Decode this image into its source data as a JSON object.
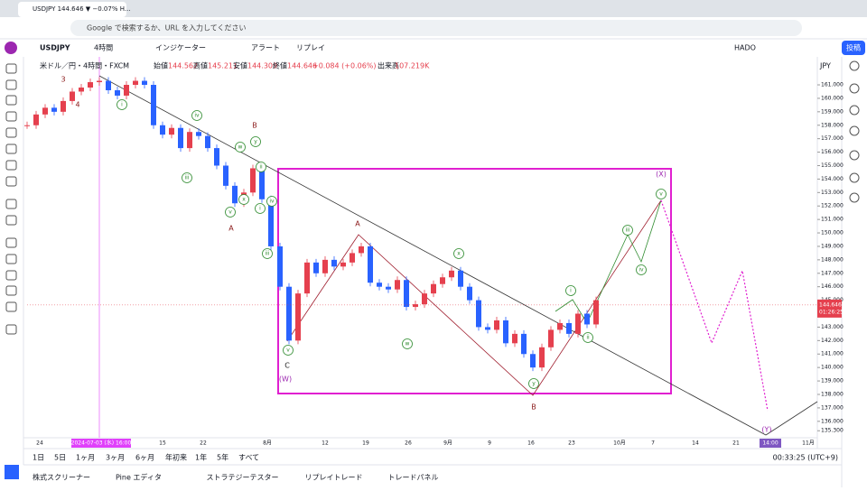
{
  "browser": {
    "tab_title": "USDJPY 144.646 ▼ −0.07% H...",
    "address": "Google で検索するか、URL を入力してください"
  },
  "toolbar": {
    "symbol": "USDJPY",
    "interval": "4時間",
    "indicators": "インジケーター",
    "alert": "アラート",
    "replay": "リプレイ",
    "layout": "HADO",
    "publish": "投稿"
  },
  "chart_data": {
    "type": "candlestick",
    "title": "米ドル／円・4時間・FXCM",
    "ohlc": [
      {
        "label": "始値",
        "value": 144.562
      },
      {
        "label": "高値",
        "value": 145.211
      },
      {
        "label": "安値",
        "value": 144.309
      },
      {
        "label": "終値",
        "value": 144.646
      }
    ],
    "change": "+0.084 (+0.06%)",
    "volume_label": "出来高",
    "volume": "107.219K",
    "closes": [
      158.0,
      158.8,
      159.3,
      159.0,
      159.8,
      160.5,
      160.8,
      161.2,
      161.3,
      160.6,
      160.2,
      161.0,
      161.3,
      161.0,
      158.0,
      157.3,
      157.8,
      156.3,
      157.5,
      157.2,
      156.3,
      155.0,
      153.5,
      152.2,
      153.0,
      154.8,
      152.5,
      149.0,
      146.0,
      142.0,
      145.5,
      147.8,
      147.0,
      148.0,
      147.5,
      147.8,
      148.5,
      149.0,
      146.3,
      146.0,
      145.8,
      146.5,
      144.5,
      144.7,
      145.5,
      146.2,
      146.7,
      147.2,
      146.0,
      145.0,
      143.0,
      142.8,
      143.5,
      141.8,
      142.5,
      141.0,
      140.0,
      141.5,
      142.8,
      143.3,
      142.5,
      144.0,
      143.2,
      145.0
    ],
    "up_color": "#e5404e",
    "down_color": "#2962ff",
    "ylim": [
      134.78,
      163.08
    ],
    "yticks": [
      {
        "value": 161,
        "label": "161.000"
      },
      {
        "value": 160,
        "label": "160.000"
      },
      {
        "value": 159,
        "label": "159.000"
      },
      {
        "value": 158,
        "label": "158.000"
      },
      {
        "value": 157,
        "label": "157.000"
      },
      {
        "value": 156,
        "label": "156.000"
      },
      {
        "value": 155,
        "label": "155.000"
      },
      {
        "value": 154,
        "label": "154.000"
      },
      {
        "value": 153,
        "label": "153.000"
      },
      {
        "value": 152,
        "label": "152.000"
      },
      {
        "value": 151,
        "label": "151.000"
      },
      {
        "value": 150,
        "label": "150.000"
      },
      {
        "value": 149,
        "label": "149.000"
      },
      {
        "value": 148,
        "label": "148.000"
      },
      {
        "value": 147,
        "label": "147.000"
      },
      {
        "value": 146,
        "label": "146.000"
      },
      {
        "value": 145,
        "label": "145.000"
      },
      {
        "value": 143,
        "label": "143.000"
      },
      {
        "value": 142,
        "label": "142.000"
      },
      {
        "value": 141,
        "label": "141.000"
      },
      {
        "value": 140,
        "label": "140.000"
      },
      {
        "value": 139,
        "label": "139.000"
      },
      {
        "value": 138,
        "label": "138.000"
      },
      {
        "value": 137,
        "label": "137.000"
      },
      {
        "value": 136,
        "label": "136.000"
      },
      {
        "value": 135.3,
        "label": "135.300"
      }
    ],
    "currency": "JPY",
    "last_price": {
      "value": 144.646,
      "label": "144.646"
    },
    "countdown": "01:26:25",
    "x_labels": [
      "24",
      "2024-07-03 (水) 16:00",
      "15",
      "22",
      "8月",
      "12",
      "19",
      "26",
      "9月",
      "9",
      "16",
      "23",
      "10月",
      "7",
      "14",
      "21",
      "14:00",
      "11月"
    ],
    "wave_labels": [
      "3",
      "4",
      "i",
      "iv",
      "iii",
      "v",
      "x",
      "w",
      "y",
      "ii",
      "i",
      "iv",
      "iii",
      "B",
      "A",
      "v",
      "C",
      "(W)",
      "A",
      "x",
      "w",
      "y",
      "B",
      "i",
      "ii",
      "iii",
      "iv",
      "v",
      "(X)",
      "(Y)"
    ]
  },
  "bottom": {
    "ranges": [
      "1日",
      "5日",
      "1ヶ月",
      "3ヶ月",
      "6ヶ月",
      "年初来",
      "1年",
      "5年",
      "すべて"
    ],
    "clock": "00:33:25 (UTC+9)",
    "panels": [
      "株式スクリーナー",
      "Pine エディタ",
      "ストラテジーテスター",
      "リプレイトレード",
      "トレードパネル"
    ]
  }
}
